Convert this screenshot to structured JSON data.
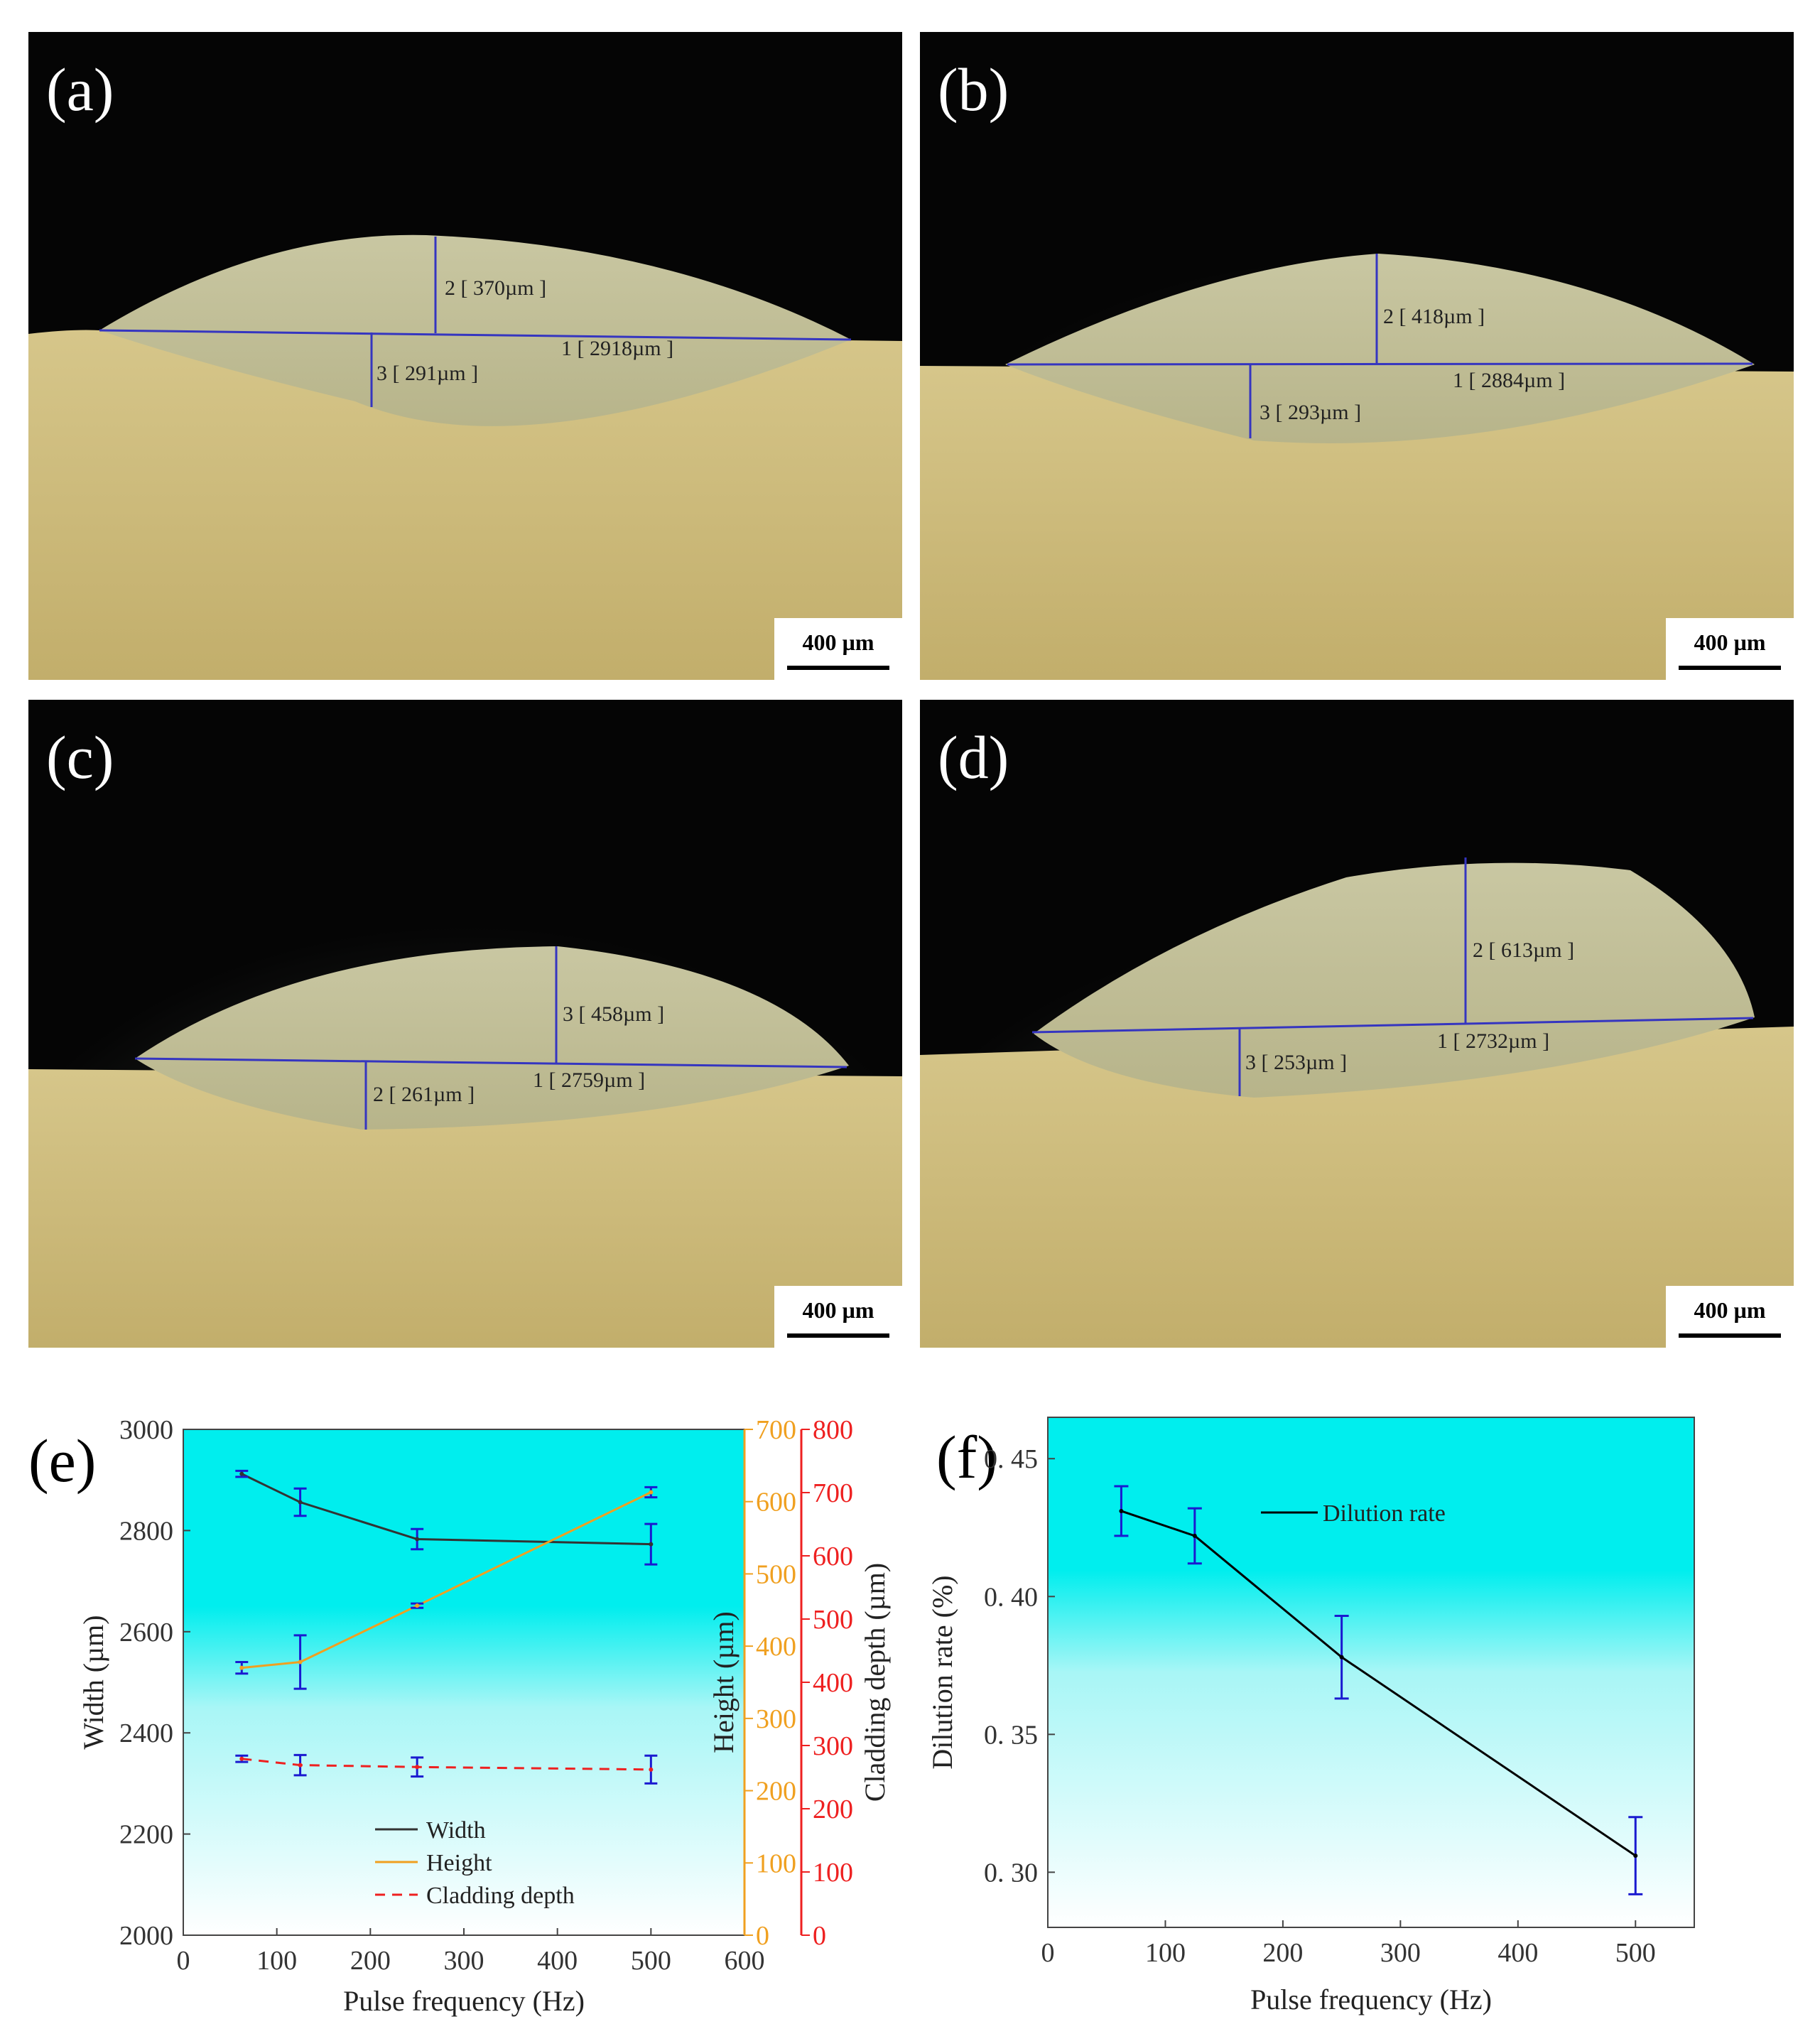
{
  "micrographs": [
    {
      "panel": "(a)",
      "scale": "400 µm",
      "measures": [
        "1 [ 2918µm ]",
        "2 [ 370µm ]",
        "3 [ 291µm ]"
      ]
    },
    {
      "panel": "(b)",
      "scale": "400 µm",
      "measures": [
        "1 [ 2884µm ]",
        "2 [ 418µm ]",
        "3 [ 293µm ]"
      ]
    },
    {
      "panel": "(c)",
      "scale": "400 µm",
      "measures": [
        "1 [ 2759µm ]",
        "3 [ 458µm ]",
        "2 [ 261µm ]"
      ]
    },
    {
      "panel": "(d)",
      "scale": "400 µm",
      "measures": [
        "1 [ 2732µm ]",
        "2 [ 613µm ]",
        "3 [ 253µm ]"
      ]
    }
  ],
  "colors": {
    "width": "#333333",
    "height": "#f0a020",
    "depth": "#ee2020",
    "errorbar": "#1a1ad0",
    "plot_top": "#00eeee",
    "plot_bottom": "#ffffff"
  },
  "chart_data": [
    {
      "panel": "(e)",
      "type": "line",
      "xlabel": "Pulse frequency (Hz)",
      "xlim": [
        0,
        600
      ],
      "xticks": [
        "0",
        "100",
        "200",
        "300",
        "400",
        "500",
        "600"
      ],
      "axes": {
        "left": {
          "label": "Width (µm)",
          "lim": [
            2000,
            3000
          ],
          "ticks": [
            "2000",
            "2200",
            "2400",
            "2600",
            "2800",
            "3000"
          ]
        },
        "right1": {
          "label": "Height (µm)",
          "lim": [
            0,
            700
          ],
          "ticks": [
            "0",
            "100",
            "200",
            "300",
            "400",
            "500",
            "600",
            "700"
          ]
        },
        "right2": {
          "label": "Cladding depth (µm)",
          "lim": [
            0,
            800
          ],
          "ticks": [
            "0",
            "100",
            "200",
            "300",
            "400",
            "500",
            "600",
            "700",
            "800"
          ]
        }
      },
      "x": [
        62.5,
        125,
        250,
        500
      ],
      "series": [
        {
          "name": "Width",
          "axis": "left",
          "style": "solid",
          "values": [
            2912,
            2856,
            2783,
            2773
          ],
          "err": [
            6,
            27,
            20,
            40
          ]
        },
        {
          "name": "Height",
          "axis": "right1",
          "style": "solid",
          "values": [
            370,
            378,
            456,
            613
          ],
          "err": [
            8,
            37,
            3,
            7
          ]
        },
        {
          "name": "Cladding depth",
          "axis": "right2",
          "style": "dashed",
          "values": [
            279,
            269,
            266,
            262
          ],
          "err": [
            5,
            16,
            15,
            22
          ]
        }
      ],
      "legend": [
        "Width",
        "Height",
        "Cladding depth"
      ],
      "legend_position": "bottom-center"
    },
    {
      "panel": "(f)",
      "type": "line",
      "xlabel": "Pulse frequency (Hz)",
      "ylabel": "Dilution rate (%)",
      "xlim": [
        0,
        550
      ],
      "xticks": [
        "0",
        "100",
        "200",
        "300",
        "400",
        "500"
      ],
      "ylim": [
        0.28,
        0.465
      ],
      "yticks": [
        "0. 30",
        "0. 35",
        "0. 40",
        "0. 45"
      ],
      "x": [
        62.5,
        125,
        250,
        500
      ],
      "series": [
        {
          "name": "Dilution rate",
          "values": [
            0.431,
            0.422,
            0.378,
            0.306
          ],
          "err": [
            0.009,
            0.01,
            0.015,
            0.014
          ]
        }
      ],
      "legend": [
        "Dilution rate"
      ],
      "legend_position": "top-center"
    }
  ]
}
